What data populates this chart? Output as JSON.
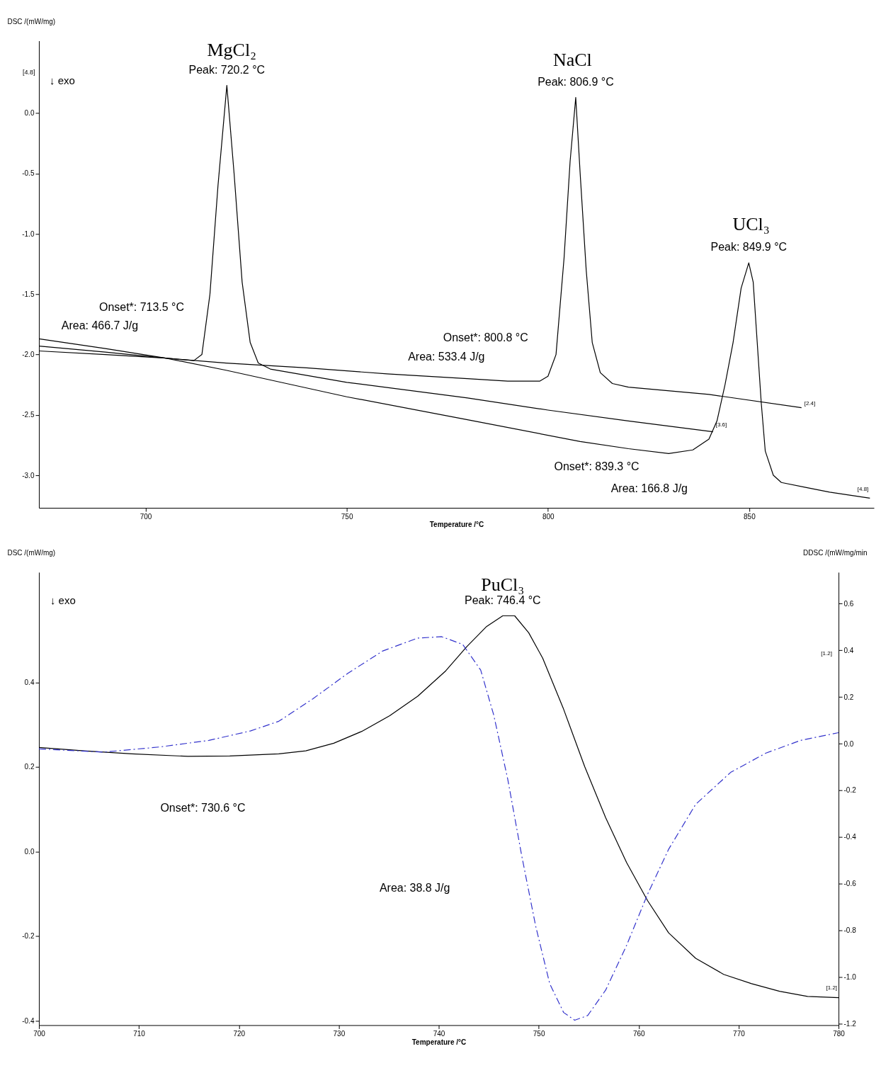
{
  "chart_data": [
    {
      "type": "line",
      "xlabel": "Temperature /°C",
      "ylabel": "DSC /(mW/mg)",
      "xlim": [
        673.5,
        881
      ],
      "ylim": [
        -3.27,
        0.6
      ],
      "xticks": [
        700,
        750,
        800,
        850
      ],
      "yticks": [
        {
          "value": 0,
          "label": "0.0"
        },
        -0.5,
        {
          "value": -1,
          "label": "-1.0"
        },
        -1.5,
        {
          "value": -2,
          "label": "-2.0"
        },
        -2.5,
        {
          "value": -3,
          "label": "-3.0"
        }
      ],
      "grid": false,
      "legend": false,
      "marker": "none",
      "line_style": "solid",
      "series": [
        {
          "color": "#000000",
          "x": [
            673.5,
            690,
            705,
            720,
            740,
            760,
            780,
            790,
            798,
            800,
            802,
            804,
            805.5,
            806.9,
            808,
            809.5,
            811,
            813,
            816,
            820,
            840,
            863
          ],
          "values": [
            -1.97,
            -2.0,
            -2.03,
            -2.07,
            -2.11,
            -2.16,
            -2.2,
            -2.22,
            -2.22,
            -2.18,
            -2.0,
            -1.2,
            -0.4,
            0.13,
            -0.5,
            -1.3,
            -1.9,
            -2.15,
            -2.24,
            -2.27,
            -2.33,
            -2.44
          ]
        },
        {
          "color": "#000000",
          "x": [
            673.5,
            690,
            705,
            712,
            714,
            716,
            718,
            720.2,
            722,
            724,
            726,
            728,
            731,
            750,
            780,
            800,
            820,
            841
          ],
          "values": [
            -1.93,
            -1.98,
            -2.03,
            -2.05,
            -2.0,
            -1.5,
            -0.6,
            0.23,
            -0.5,
            -1.4,
            -1.9,
            -2.07,
            -2.12,
            -2.23,
            -2.36,
            -2.46,
            -2.55,
            -2.64
          ]
        },
        {
          "color": "#000000",
          "x": [
            673.5,
            690,
            705,
            720,
            750,
            780,
            808,
            820,
            830,
            836,
            840,
            842,
            844,
            846,
            848,
            849.9,
            851,
            852,
            853,
            854,
            856,
            858,
            864,
            870,
            880
          ],
          "values": [
            -1.87,
            -1.95,
            -2.03,
            -2.13,
            -2.35,
            -2.54,
            -2.72,
            -2.78,
            -2.82,
            -2.79,
            -2.7,
            -2.55,
            -2.25,
            -1.9,
            -1.45,
            -1.24,
            -1.4,
            -1.9,
            -2.4,
            -2.8,
            -3.0,
            -3.06,
            -3.1,
            -3.14,
            -3.19
          ]
        }
      ],
      "annotations": [
        "MgCl₂",
        {
          "text": "Peak: 720.2 °C",
          "x": 720.2,
          "y": 0.23
        },
        "NaCl",
        {
          "text": "Peak: 806.9 °C",
          "x": 806.9,
          "y": 0.13
        },
        "UCl₃",
        {
          "text": "Peak: 849.9 °C",
          "x": 849.9,
          "y": -1.24
        },
        "Onset*: 713.5 °C",
        "Area: 466.7 J/g",
        "Onset*: 800.8 °C",
        "Area: 533.4 J/g",
        "Onset*: 839.3 °C",
        "Area: 166.8 J/g",
        "[4.8]",
        "↓ exo",
        {
          "text": "[2.4]",
          "x": 863,
          "y": -2.44
        },
        {
          "text": "[3.6]",
          "x": 841,
          "y": -2.64
        },
        {
          "text": "[4.8]",
          "x": 880,
          "y": -3.19
        }
      ]
    },
    {
      "type": "line",
      "xlabel": "Temperature /°C",
      "ylabel": "DSC /(mW/mg)",
      "y2label": "DDSC /(mW/mg/min",
      "xlim": [
        700,
        780
      ],
      "ylim": [
        -0.41,
        0.66
      ],
      "y2lim": [
        -1.205,
        0.734
      ],
      "xticks": [
        700,
        710,
        720,
        730,
        740,
        750,
        760,
        770,
        780
      ],
      "yticks": [
        0.4,
        0.2,
        {
          "value": 0,
          "label": "0.0"
        },
        -0.2,
        -0.4
      ],
      "y2ticks": [
        0.6,
        0.4,
        0.2,
        {
          "value": 0,
          "label": "0.0"
        },
        -0.2,
        -0.4,
        -0.6,
        -0.8,
        {
          "value": -1,
          "label": "-1.0"
        },
        -1.2
      ],
      "grid": false,
      "legend": false,
      "marker": "none",
      "series": [
        {
          "color": "#000000",
          "line_style": "solid",
          "x": [
            700,
            704.5,
            709.3,
            714.9,
            719.1,
            724,
            726.7,
            729.5,
            732.3,
            735.1,
            737.9,
            740.7,
            742.8,
            744.8,
            746.4,
            747.6,
            749,
            750.4,
            752.5,
            754.6,
            756.7,
            758.8,
            760.9,
            763,
            765.7,
            768.5,
            771.3,
            774.1,
            776.9,
            780
          ],
          "values": [
            0.246,
            0.238,
            0.231,
            0.225,
            0.226,
            0.231,
            0.238,
            0.256,
            0.284,
            0.321,
            0.367,
            0.427,
            0.484,
            0.532,
            0.557,
            0.557,
            0.517,
            0.457,
            0.336,
            0.201,
            0.08,
            -0.026,
            -0.116,
            -0.192,
            -0.252,
            -0.29,
            -0.312,
            -0.33,
            -0.342,
            -0.345
          ]
        },
        {
          "color": "#3333cc",
          "line_style": "dashed",
          "axis": "y2",
          "x": [
            700,
            706.5,
            712.1,
            717,
            721.2,
            724,
            727.4,
            730.9,
            734.4,
            737.9,
            740.3,
            742.4,
            744.2,
            745.5,
            746.9,
            748.3,
            749.7,
            751.1,
            752.5,
            753.6,
            754.9,
            756.7,
            758.8,
            760.9,
            763,
            765.7,
            769.2,
            772.7,
            776.2,
            780
          ],
          "values": [
            -0.022,
            -0.036,
            -0.014,
            0.014,
            0.055,
            0.096,
            0.192,
            0.301,
            0.397,
            0.452,
            0.458,
            0.425,
            0.315,
            0.123,
            -0.151,
            -0.479,
            -0.781,
            -1.027,
            -1.151,
            -1.184,
            -1.164,
            -1.055,
            -0.863,
            -0.644,
            -0.452,
            -0.26,
            -0.123,
            -0.041,
            0.014,
            0.047
          ]
        }
      ],
      "annotations": [
        "PuCl₃",
        {
          "text": "Peak: 746.4 °C",
          "x": 746.4,
          "y": 0.557
        },
        "Onset*: 730.6 °C",
        "Area: 38.8 J/g",
        "↓ exo",
        "[1.2]",
        {
          "text": "[1.2]",
          "x": 780,
          "y": -0.345
        }
      ]
    }
  ]
}
